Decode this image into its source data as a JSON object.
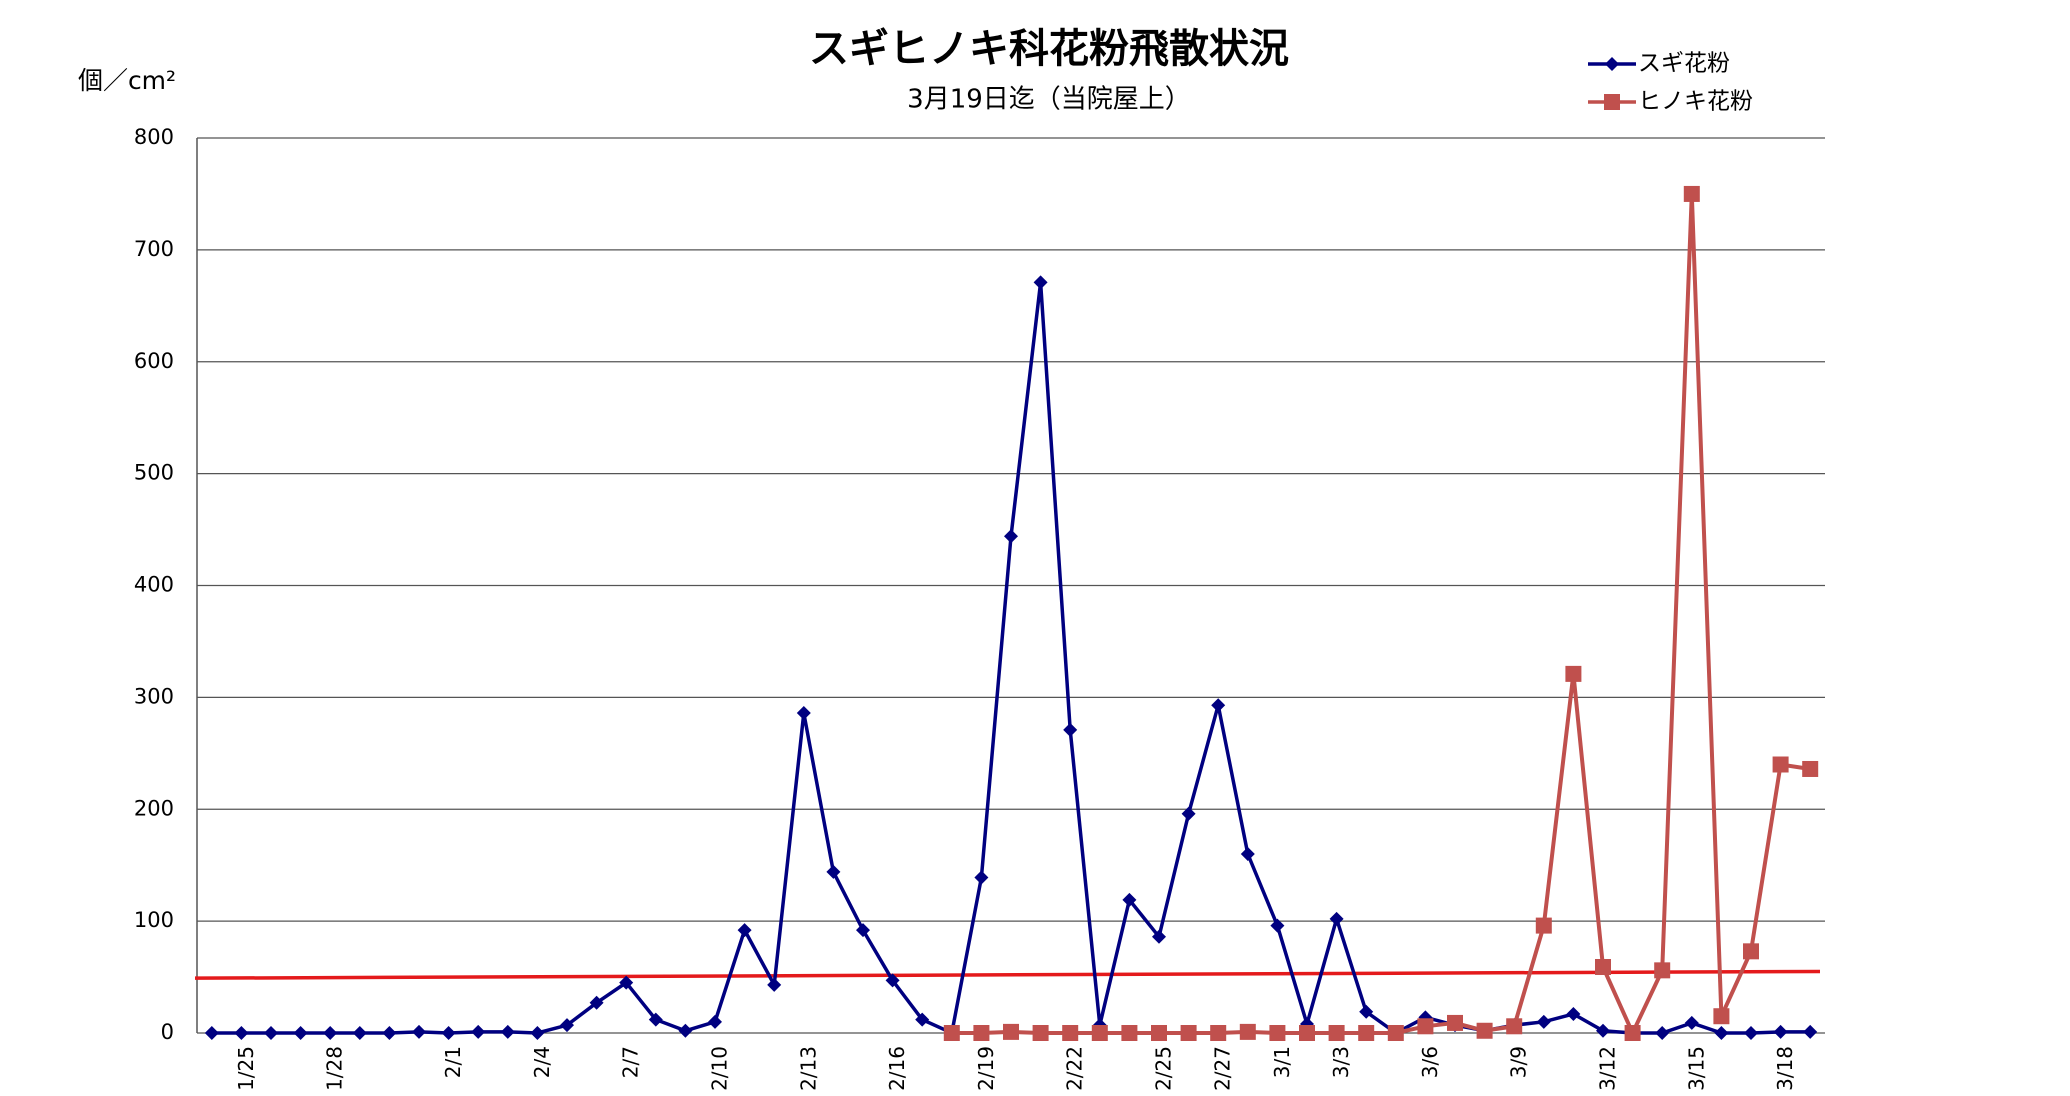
{
  "chart_data": {
    "type": "line",
    "title": "スギヒノキ科花粉飛散状況",
    "subtitle": "3月19日迄（当院屋上）",
    "y_axis_label": "個／cm²",
    "categories": [
      null,
      "1/25",
      null,
      null,
      "1/28",
      null,
      null,
      null,
      "2/1",
      null,
      null,
      "2/4",
      null,
      null,
      "2/7",
      null,
      null,
      "2/10",
      null,
      null,
      "2/13",
      null,
      null,
      "2/16",
      null,
      null,
      "2/19",
      null,
      null,
      "2/22",
      null,
      null,
      "2/25",
      null,
      "2/27",
      null,
      "3/1",
      null,
      "3/3",
      null,
      null,
      "3/6",
      null,
      null,
      "3/9",
      null,
      null,
      "3/12",
      null,
      null,
      "3/15",
      null,
      null,
      "3/18",
      null
    ],
    "series": [
      {
        "name": "スギ花粉",
        "color": "#000080",
        "marker": "diamond",
        "values": [
          0,
          0,
          0,
          0,
          0,
          0,
          0,
          1,
          0,
          1,
          1,
          0,
          7,
          27,
          45,
          12,
          2,
          10,
          92,
          43,
          286,
          144,
          92,
          47,
          12,
          0,
          139,
          444,
          671,
          271,
          7,
          119,
          86,
          196,
          293,
          160,
          96,
          8,
          102,
          19,
          0,
          14,
          7,
          2,
          7,
          10,
          17,
          2,
          0,
          0,
          9,
          0,
          0,
          1,
          1
        ]
      },
      {
        "name": "ヒノキ花粉",
        "color": "#c0504d",
        "marker": "square",
        "values": [
          null,
          null,
          null,
          null,
          null,
          null,
          null,
          null,
          null,
          null,
          null,
          null,
          null,
          null,
          null,
          null,
          null,
          null,
          null,
          null,
          null,
          null,
          null,
          null,
          null,
          0,
          0,
          1,
          0,
          0,
          0,
          0,
          0,
          0,
          0,
          1,
          0,
          0,
          0,
          0,
          0,
          6,
          9,
          2,
          6,
          96,
          321,
          59,
          0,
          56,
          750,
          15,
          73,
          240,
          236
        ]
      }
    ],
    "reference_line": {
      "color": "#e41a1c",
      "values": [
        49,
        55
      ]
    },
    "ylim": [
      0,
      800
    ],
    "yticks": [
      0,
      100,
      200,
      300,
      400,
      500,
      600,
      700,
      800
    ],
    "grid": true,
    "legend": "top-right"
  }
}
